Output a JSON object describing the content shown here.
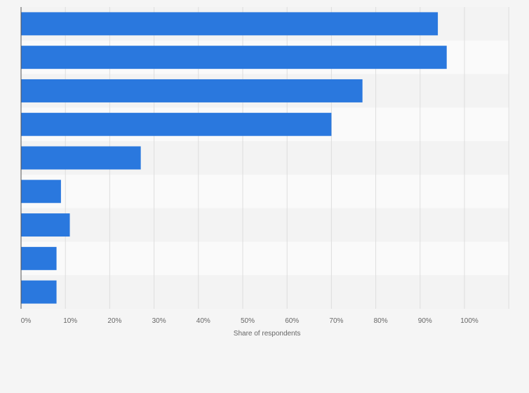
{
  "chart_data": {
    "type": "bar",
    "orientation": "horizontal",
    "categories": [
      "",
      "",
      "",
      "",
      "",
      "",
      "",
      "",
      ""
    ],
    "values": [
      94,
      96,
      77,
      70,
      27,
      9,
      11,
      8,
      8
    ],
    "xlabel": "Share of respondents",
    "ylabel": "",
    "xlim": [
      0,
      110
    ],
    "x_ticks": [
      0,
      10,
      20,
      30,
      40,
      50,
      60,
      70,
      80,
      90,
      100
    ],
    "x_tick_labels": [
      "0%",
      "10%",
      "20%",
      "30%",
      "40%",
      "50%",
      "60%",
      "70%",
      "80%",
      "90%",
      "100%"
    ],
    "grid": true,
    "colors": {
      "bar": "#2a78de",
      "background": "#f5f5f5",
      "band_light": "#fafafa",
      "band_dark": "#f3f3f3",
      "grid": "#dedede",
      "axis": "#555555"
    }
  }
}
